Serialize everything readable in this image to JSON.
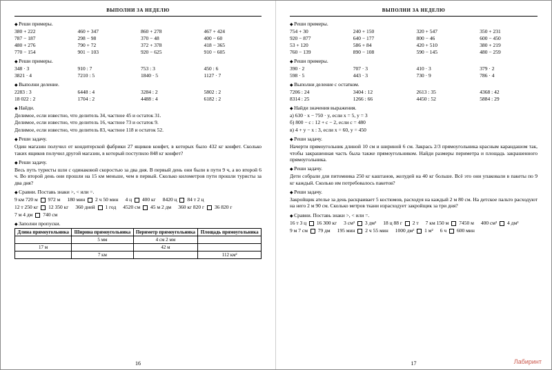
{
  "header": "ВЫПОЛНИ ЗА НЕДЕЛЮ",
  "pnL": "16",
  "pnR": "17",
  "wm": "Лабиринт",
  "L": {
    "s1": {
      "h": "Реши примеры.",
      "r": [
        [
          "380 + 222",
          "460 + 347",
          "860 + 278",
          "467 + 424"
        ],
        [
          "787 − 187",
          "298 − 98",
          "370 − 48",
          "400 − 60"
        ],
        [
          "480 + 276",
          "790 + 72",
          "372 + 378",
          "418 − 365"
        ],
        [
          "770 − 154",
          "901 − 103",
          "920 − 625",
          "910 − 605"
        ]
      ]
    },
    "s2": {
      "h": "Реши примеры.",
      "r": [
        [
          "348 · 3",
          "910 : 7",
          "753 : 3",
          "450 : 6"
        ],
        [
          "3821 · 4",
          "7210 : 5",
          "1840 · 5",
          "1127 · 7"
        ]
      ]
    },
    "s3": {
      "h": "Выполни деление.",
      "r": [
        [
          "2283 : 3",
          "6448 : 4",
          "3284 : 2",
          "5802 : 2"
        ],
        [
          "18 022 : 2",
          "1704 : 2",
          "4488 : 4",
          "6182 : 2"
        ]
      ]
    },
    "s4": {
      "h": "Найди.",
      "t": [
        "Делимое, если известно, что делитель 34, частное 45 и остаток 31.",
        "Делимое, если известно, что делитель 16, частное 73 и остаток 9.",
        "Делимое, если известно, что делитель 83, частное 118 и остаток 52."
      ]
    },
    "s5": {
      "h": "Реши задачу.",
      "t": [
        "Один магазин получил от кондитерской фабрики 27 ящиков конфет, в которых было 432 кг конфет. Сколько таких ящиков получил другой магазин, в который поступило 848 кг конфет?"
      ]
    },
    "s6": {
      "h": "Реши задачу.",
      "t": [
        "Весь путь туристы шли с одинаковой скоростью за два дня. В первый день они были в пути 9 ч, а во второй 6 ч. Во второй день они прошли на 15 км меньше, чем в первый. Сколько километров пути прошли туристы за два дня?"
      ]
    },
    "s7": {
      "h": "Сравни. Поставь знаки >, < или =.",
      "c": [
        [
          "9 км 720 м",
          "972 м"
        ],
        [
          "180 мин",
          "2 ч 50 мин"
        ],
        [
          "4 ц",
          "400 кг"
        ],
        [
          "8420 ц",
          "84 т 2 ц"
        ],
        [
          "12 т 250 кг",
          "12 350 кг"
        ],
        [
          "360 дней",
          "1 год"
        ],
        [
          "4520 см",
          "45 м 2 дм"
        ],
        [
          "360 кг 820 г",
          "36 820 г"
        ],
        [
          "7 м 4 дм",
          "740 см"
        ]
      ]
    },
    "s8": {
      "h": "Заполни пропуски.",
      "th": [
        "Длина прямоугольника",
        "Ширина прямоугольника",
        "Периметр прямоугольника",
        "Площадь прямоугольника"
      ],
      "rows": [
        [
          "",
          "5 мм",
          "4 см 2 мм",
          ""
        ],
        [
          "17 м",
          "",
          "42 м",
          ""
        ],
        [
          "",
          "7 км",
          "",
          "112 км²"
        ]
      ]
    }
  },
  "R": {
    "s1": {
      "h": "Реши примеры.",
      "r": [
        [
          "754 + 30",
          "240 + 150",
          "320 + 547",
          "350 + 231"
        ],
        [
          "920 − 877",
          "640 − 177",
          "800 − 46",
          "600 − 450"
        ],
        [
          "53 + 120",
          "586 + 84",
          "420 + 510",
          "380 + 219"
        ],
        [
          "760 − 139",
          "890 − 108",
          "590 − 145",
          "480 − 259"
        ]
      ]
    },
    "s2": {
      "h": "Реши примеры.",
      "r": [
        [
          "390 · 2",
          "707 · 3",
          "410 · 3",
          "379 · 2"
        ],
        [
          "598 · 5",
          "443 · 3",
          "730 · 9",
          "786 · 4"
        ]
      ]
    },
    "s3": {
      "h": "Выполни деление с остатком.",
      "r": [
        [
          "7206 : 24",
          "3404 : 12",
          "2613 : 35",
          "4368 : 42"
        ],
        [
          "8314 : 25",
          "1266 : 66",
          "4450 : 52",
          "5884 : 29"
        ]
      ]
    },
    "s4": {
      "h": "Найди значения выражения.",
      "t": [
        "a) 630 · x − 750 · y, если x = 5, y = 3",
        "б) 800 − c : 12 + c − 2, если c = 480",
        "в) 4 + y − x : 3, если x = 60, y = 450"
      ]
    },
    "s5": {
      "h": "Реши задачу.",
      "t": [
        "Начерти прямоугольник длиной 10 см и шириной 6 см. Закрась 2/3 прямоугольника красным карандашом так, чтобы закрашенная часть была также прямоугольником. Найди размеры периметра и площадь закрашенного прямоугольника."
      ]
    },
    "s6": {
      "h": "Реши задачу.",
      "t": [
        "Дети собрали для питомника 250 кг каштанов, желудей на 40 кг больше. Всё это они упаковали в пакеты по 9 кг каждый. Сколько им потребовалось пакетов?"
      ]
    },
    "s7": {
      "h": "Реши задачу.",
      "t": [
        "Закройщик ателье за день раскраивает 5 костюмов, расходуя на каждый 2 м 80 см. На детское пальто расходуют на него 2 м 90 см. Сколько метров ткани израсходует закройщик за три дня?"
      ]
    },
    "s8": {
      "h": "Сравни. Поставь знаки >, < или =.",
      "c": [
        [
          "16 т 3 ц",
          "16 300 кг"
        ],
        [
          "3 см²",
          "3 дм²"
        ],
        [
          "18 ц 88 г",
          "2 т"
        ],
        [
          "7 км 150 м",
          "7450 м"
        ],
        [
          "400 см²",
          "4 дм²"
        ],
        [
          "9 м 7 см",
          "79 дм"
        ],
        [
          "195 мин",
          "2 ч 55 мин"
        ],
        [
          "1000 дм²",
          "1 м²"
        ],
        [
          "6 ч",
          "600 мин"
        ]
      ]
    }
  }
}
